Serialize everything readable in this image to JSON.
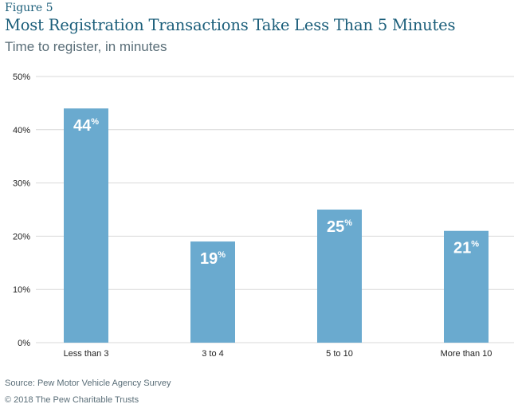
{
  "figure_label": "Figure 5",
  "title": "Most Registration Transactions Take Less Than 5 Minutes",
  "subtitle": "Time to register, in minutes",
  "source": "Source: Pew Motor Vehicle Agency Survey",
  "copyright": "© 2018 The Pew Charitable Trusts",
  "colors": {
    "bar": "#6aaacf",
    "grid": "#d9d9d9",
    "title": "#1b5e7a"
  },
  "chart_data": {
    "type": "bar",
    "categories": [
      "Less than 3",
      "3 to 4",
      "5 to 10",
      "More than 10"
    ],
    "values": [
      44,
      19,
      25,
      21
    ],
    "data_labels": [
      "44",
      "19",
      "25",
      "21"
    ],
    "data_label_suffix": "%",
    "ylim": [
      0,
      50
    ],
    "yticks": [
      0,
      10,
      20,
      30,
      40,
      50
    ],
    "ytick_labels": [
      "0%",
      "10%",
      "20%",
      "30%",
      "40%",
      "50%"
    ],
    "grid": true,
    "xlabel": "",
    "ylabel": ""
  }
}
